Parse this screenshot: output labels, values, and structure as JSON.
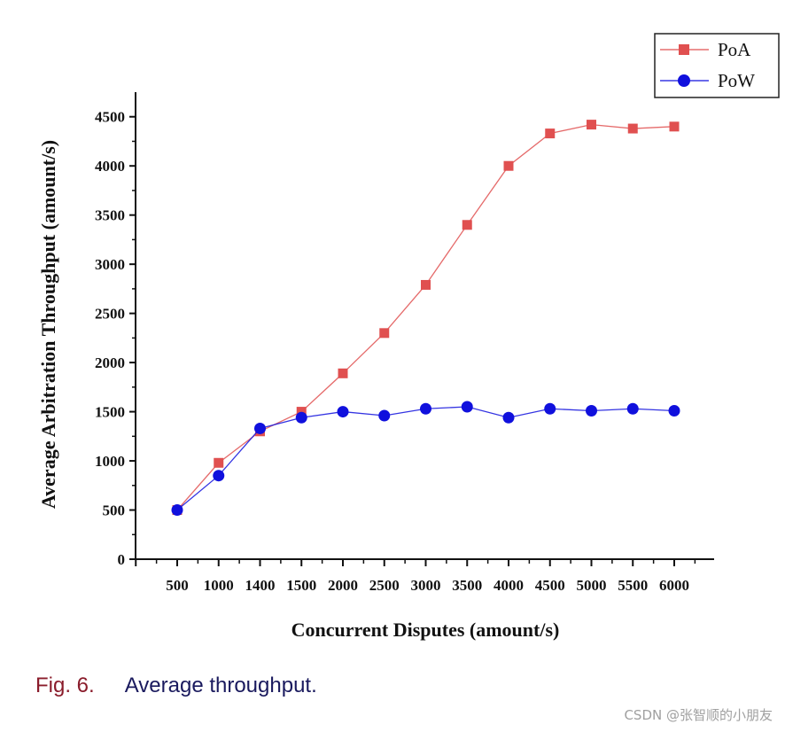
{
  "chart_data": {
    "type": "line",
    "title": "",
    "xlabel": "Concurrent Disputes (amount/s)",
    "ylabel": "Average Arbitration Throughput (amount/s)",
    "categories": [
      "500",
      "1000",
      "1400",
      "1500",
      "2000",
      "2500",
      "3000",
      "3500",
      "4000",
      "4500",
      "5000",
      "5500",
      "6000"
    ],
    "ylim": [
      0,
      4750
    ],
    "yticks": [
      0,
      500,
      1000,
      1500,
      2000,
      2500,
      3000,
      3500,
      4000,
      4500
    ],
    "legend_position": "top-right",
    "grid": false,
    "series": [
      {
        "name": "PoA",
        "color": "#e05050",
        "marker": "square",
        "values": [
          500,
          980,
          1300,
          1500,
          1890,
          2300,
          2790,
          3400,
          4000,
          4330,
          4420,
          4380,
          4400
        ]
      },
      {
        "name": "PoW",
        "color": "#1010dd",
        "marker": "circle",
        "values": [
          500,
          850,
          1330,
          1440,
          1500,
          1460,
          1530,
          1550,
          1440,
          1530,
          1510,
          1530,
          1510
        ]
      }
    ]
  },
  "caption": {
    "figure_number": "Fig. 6.",
    "text": "Average throughput."
  },
  "watermark": "CSDN @张智顺的小朋友"
}
